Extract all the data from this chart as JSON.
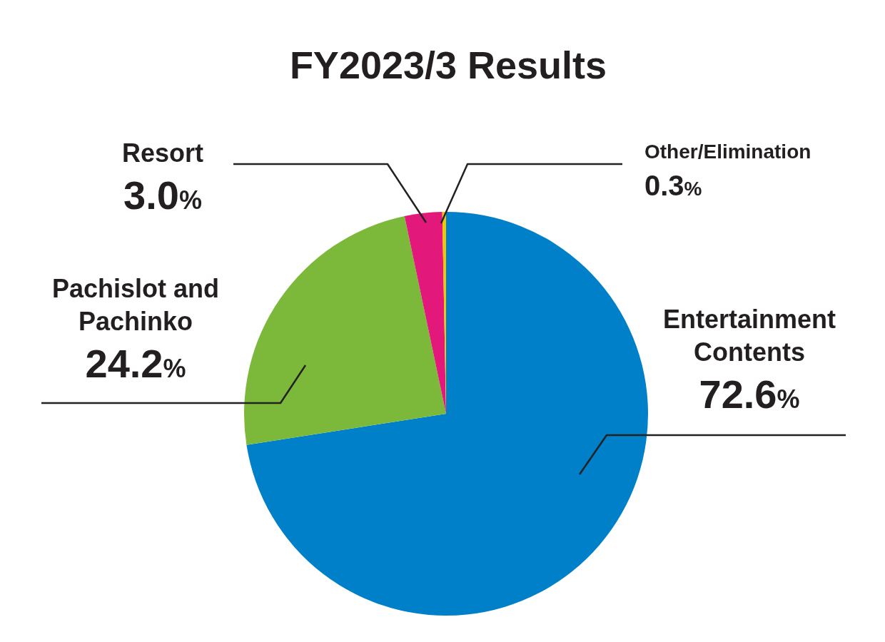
{
  "chart_data": {
    "type": "pie",
    "title": "FY2023/3 Results",
    "categories": [
      "Entertainment Contents",
      "Pachislot and Pachinko",
      "Resort",
      "Other/Elimination"
    ],
    "values": [
      72.6,
      24.2,
      3.0,
      0.3
    ],
    "colors": [
      "#0080c8",
      "#7cb93a",
      "#e2187a",
      "#f0c800"
    ],
    "value_labels": [
      "72.6%",
      "24.2%",
      "3.0%",
      "0.3%"
    ]
  }
}
